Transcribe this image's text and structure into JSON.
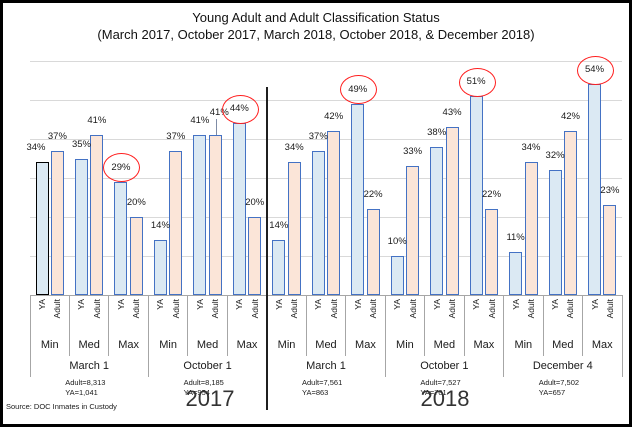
{
  "chart_data": {
    "type": "bar",
    "title": "Young Adult and Adult Classification Status",
    "subtitle": "(March 2017, October 2017, March 2018, October 2018, & December 2018)",
    "unit": "percent",
    "ylim": [
      0,
      60
    ],
    "gridline_step": 10,
    "grid": true,
    "legend": "none",
    "bar_tick_labels": [
      "YA",
      "Adult"
    ],
    "level_labels": [
      "Min",
      "Med",
      "Max"
    ],
    "colors": {
      "ya_fill": "#dbe9f3",
      "adult_fill": "#fbe5d8",
      "bar_border": "#4472c4",
      "highlight_border": "#000000",
      "circle": "#ff1f1f",
      "gridline": "#d9d9d9",
      "axis_line": "#a6a6a6",
      "divider": "#1f1f1f"
    },
    "years": [
      {
        "year": "2017",
        "dates": [
          {
            "date": "March 1",
            "notes": "Adult=8,313\nYA=1,041",
            "levels": [
              {
                "level": "Min",
                "ya": 34,
                "adult": 37,
                "ya_label": "34%",
                "adult_label": "37%",
                "ya_label_dx": -6,
                "ya_highlight": true
              },
              {
                "level": "Med",
                "ya": 35,
                "adult": 41,
                "ya_label": "35%",
                "adult_label": "41%"
              },
              {
                "level": "Max",
                "ya": 29,
                "adult": 20,
                "ya_label": "29%",
                "adult_label": "20%",
                "ya_circled": true
              }
            ]
          },
          {
            "date": "October 1",
            "notes": "Adult=8,185\nYA=954",
            "levels": [
              {
                "level": "Min",
                "ya": 14,
                "adult": 37,
                "ya_label": "14%",
                "adult_label": "37%"
              },
              {
                "level": "Med",
                "ya": 41,
                "adult": 41,
                "ya_label": "41%",
                "adult_label": "41%",
                "adult_label_dx": 4,
                "adult_label_dy": -8,
                "adult_leader": true
              },
              {
                "level": "Max",
                "ya": 44,
                "adult": 20,
                "ya_label": "44%",
                "adult_label": "20%",
                "ya_circled": true
              }
            ]
          }
        ]
      },
      {
        "year": "2018",
        "dates": [
          {
            "date": "March 1",
            "notes": "Adult=7,561\nYA=863",
            "levels": [
              {
                "level": "Min",
                "ya": 14,
                "adult": 34,
                "ya_label": "14%",
                "adult_label": "34%"
              },
              {
                "level": "Med",
                "ya": 37,
                "adult": 42,
                "ya_label": "37%",
                "adult_label": "42%"
              },
              {
                "level": "Max",
                "ya": 49,
                "adult": 22,
                "ya_label": "49%",
                "adult_label": "22%",
                "ya_circled": true
              }
            ]
          },
          {
            "date": "October 1",
            "notes": "Adult=7,527\nYA=701",
            "levels": [
              {
                "level": "Min",
                "ya": 10,
                "adult": 33,
                "ya_label": "10%",
                "adult_label": "33%"
              },
              {
                "level": "Med",
                "ya": 38,
                "adult": 43,
                "ya_label": "38%",
                "adult_label": "43%"
              },
              {
                "level": "Max",
                "ya": 51,
                "adult": 22,
                "ya_label": "51%",
                "adult_label": "22%",
                "ya_circled": true
              }
            ]
          },
          {
            "date": "December 4",
            "notes": "Adult=7,502\nYA=657",
            "levels": [
              {
                "level": "Min",
                "ya": 11,
                "adult": 34,
                "ya_label": "11%",
                "adult_label": "34%"
              },
              {
                "level": "Med",
                "ya": 32,
                "adult": 42,
                "ya_label": "32%",
                "adult_label": "42%"
              },
              {
                "level": "Max",
                "ya": 54,
                "adult": 23,
                "ya_label": "54%",
                "adult_label": "23%",
                "ya_circled": true
              }
            ]
          }
        ]
      }
    ],
    "source": "Source: DOC Inmates in Custody"
  }
}
